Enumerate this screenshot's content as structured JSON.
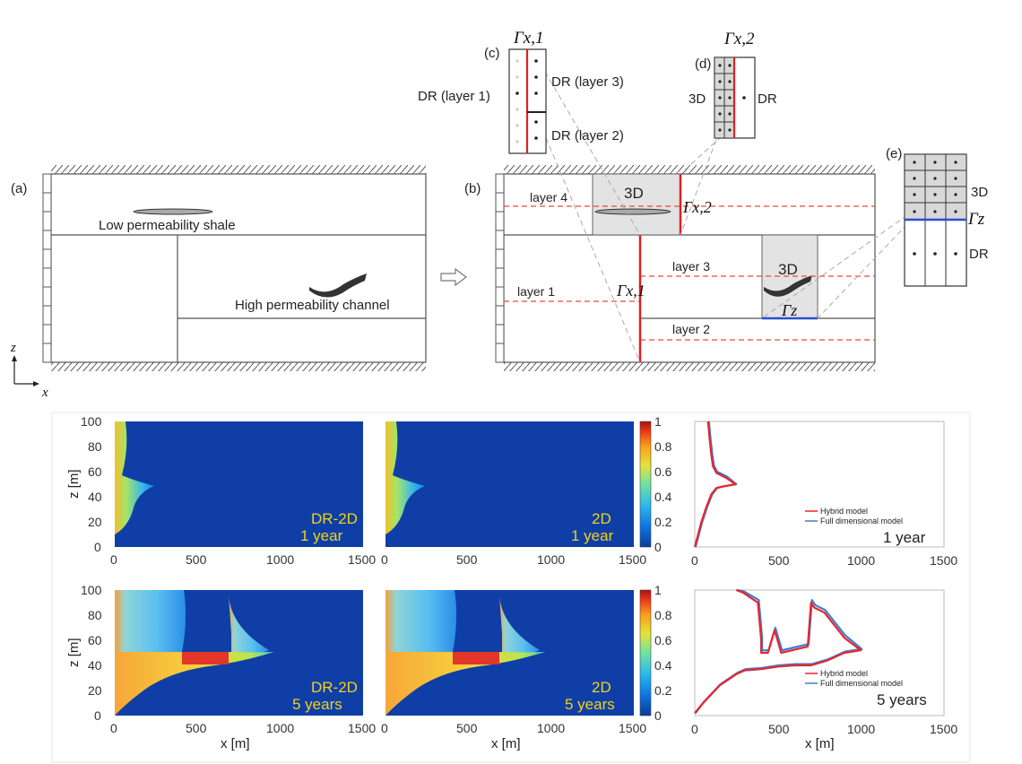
{
  "schematic": {
    "panel_a": "(a)",
    "panel_b": "(b)",
    "panel_c": "(c)",
    "panel_d": "(d)",
    "panel_e": "(e)",
    "shale_label": "Low permeability shale",
    "channel_label": "High permeability channel",
    "layer1": "layer 1",
    "layer2": "layer 2",
    "layer3": "layer 3",
    "layer4": "layer 4",
    "box3d_top": "3D",
    "box3d_right": "3D",
    "gamma_x1": "Γx,1",
    "gamma_x2": "Γx,2",
    "gamma_z": "Γz",
    "axis_z": "z",
    "axis_x": "x",
    "c_dr_layer1": "DR (layer 1)",
    "c_dr_layer3": "DR (layer 3)",
    "c_dr_layer2": "DR (layer 2)",
    "c_gamma": "Γx,1",
    "d_3d": "3D",
    "d_dr": "DR",
    "d_gamma": "Γx,2",
    "e_3d": "3D",
    "e_dr": "DR",
    "e_gamma": "Γz"
  },
  "results": {
    "z_axis_label": "z [m]",
    "x_axis_label": "x [m]",
    "x_ticks": [
      "0",
      "500",
      "1000",
      "1500"
    ],
    "z_ticks": [
      "0",
      "20",
      "40",
      "60",
      "80",
      "100"
    ],
    "colorbar_ticks": [
      "0",
      "0.2",
      "0.4",
      "0.6",
      "0.8",
      "1"
    ],
    "row1": {
      "dr_label": "DR-2D",
      "dr_time": "1 year",
      "full_label": "2D",
      "full_time": "1 year",
      "profile_time": "1 year"
    },
    "row2": {
      "dr_label": "DR-2D",
      "dr_time": "5 years",
      "full_label": "2D",
      "full_time": "5 years",
      "profile_time": "5 years"
    },
    "legend": {
      "hybrid": "Hybrid model",
      "full": "Full dimensional model"
    },
    "colors": {
      "hybrid": "#e8262b",
      "full": "#3a7fd4",
      "background": "#0f3fa6"
    }
  },
  "chart_data": [
    {
      "type": "line",
      "title": "1 year",
      "xlabel": "",
      "ylabel": "",
      "xlim": [
        0,
        1500
      ],
      "ylim": [
        0,
        100
      ],
      "legend_position": "bottom-right",
      "series": [
        {
          "name": "Hybrid model",
          "points": [
            [
              0,
              0
            ],
            [
              20,
              10
            ],
            [
              40,
              20
            ],
            [
              70,
              32
            ],
            [
              100,
              42
            ],
            [
              130,
              47
            ],
            [
              160,
              48
            ],
            [
              200,
              49
            ],
            [
              245,
              50
            ],
            [
              190,
              55
            ],
            [
              130,
              59
            ],
            [
              110,
              64
            ],
            [
              100,
              73
            ],
            [
              90,
              85
            ],
            [
              80,
              100
            ]
          ]
        },
        {
          "name": "Full dimensional model",
          "points": [
            [
              5,
              0
            ],
            [
              25,
              10
            ],
            [
              45,
              20
            ],
            [
              75,
              32
            ],
            [
              105,
              42
            ],
            [
              135,
              47
            ],
            [
              165,
              48
            ],
            [
              205,
              49
            ],
            [
              250,
              50
            ],
            [
              195,
              56
            ],
            [
              135,
              60
            ],
            [
              115,
              65
            ],
            [
              105,
              74
            ],
            [
              95,
              86
            ],
            [
              85,
              100
            ]
          ]
        }
      ]
    },
    {
      "type": "line",
      "title": "5 years",
      "xlabel": "x [m]",
      "ylabel": "",
      "xlim": [
        0,
        1500
      ],
      "ylim": [
        0,
        100
      ],
      "legend_position": "bottom-right",
      "series": [
        {
          "name": "Hybrid model",
          "points": [
            [
              0,
              2
            ],
            [
              50,
              10
            ],
            [
              150,
              24
            ],
            [
              250,
              33
            ],
            [
              300,
              36
            ],
            [
              400,
              37
            ],
            [
              500,
              39
            ],
            [
              600,
              40
            ],
            [
              700,
              40
            ],
            [
              800,
              44
            ],
            [
              900,
              50
            ],
            [
              1000,
              52
            ],
            [
              900,
              62
            ],
            [
              780,
              82
            ],
            [
              720,
              86
            ],
            [
              700,
              90
            ],
            [
              680,
              55
            ],
            [
              520,
              50
            ],
            [
              480,
              68
            ],
            [
              440,
              50
            ],
            [
              400,
              50
            ],
            [
              400,
              60
            ],
            [
              380,
              90
            ],
            [
              290,
              98
            ],
            [
              250,
              100
            ]
          ]
        },
        {
          "name": "Full dimensional model",
          "points": [
            [
              5,
              2
            ],
            [
              55,
              11
            ],
            [
              155,
              25
            ],
            [
              255,
              34
            ],
            [
              305,
              37
            ],
            [
              405,
              38
            ],
            [
              505,
              40
            ],
            [
              605,
              41
            ],
            [
              705,
              41
            ],
            [
              805,
              45
            ],
            [
              905,
              51
            ],
            [
              1005,
              53
            ],
            [
              905,
              64
            ],
            [
              785,
              84
            ],
            [
              725,
              88
            ],
            [
              705,
              92
            ],
            [
              685,
              57
            ],
            [
              525,
              52
            ],
            [
              485,
              70
            ],
            [
              445,
              52
            ],
            [
              405,
              52
            ],
            [
              405,
              62
            ],
            [
              385,
              92
            ],
            [
              295,
              99
            ],
            [
              255,
              100
            ]
          ]
        }
      ]
    }
  ]
}
